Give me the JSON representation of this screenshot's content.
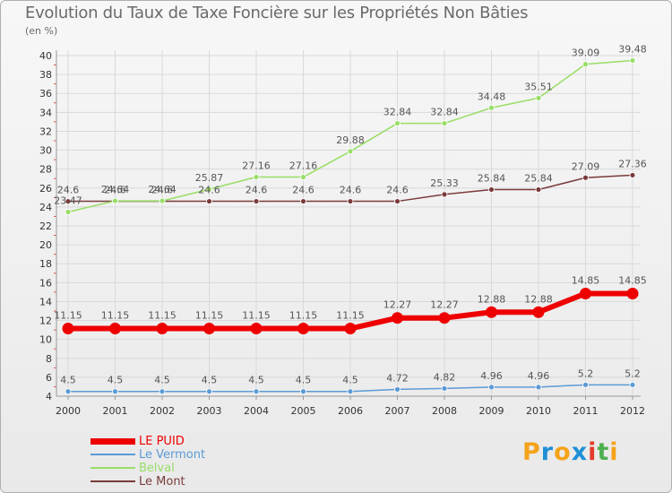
{
  "title": "Evolution du Taux de Taxe Foncière sur les Propriétés Non Bâties",
  "unit_label": "(en %)",
  "brand": {
    "text": "Proxiti",
    "colors": [
      "#f5a31a",
      "#1f8fd6",
      "#f5a31a",
      "#1f8fd6",
      "#e23c2b",
      "#4caf50",
      "#f5a31a"
    ]
  },
  "chart_data": {
    "type": "line",
    "title": "Evolution du Taux de Taxe Foncière sur les Propriétés Non Bâties",
    "xlabel": "",
    "ylabel": "(en %)",
    "ylim": [
      4,
      40
    ],
    "yticks": [
      4,
      6,
      8,
      10,
      12,
      14,
      16,
      18,
      20,
      22,
      24,
      26,
      28,
      30,
      32,
      34,
      36,
      38,
      40
    ],
    "x": [
      "2000",
      "2001",
      "2002",
      "2003",
      "2004",
      "2005",
      "2006",
      "2007",
      "2008",
      "2009",
      "2010",
      "2011",
      "2012"
    ],
    "grid": true,
    "legend_position": "bottom-left",
    "series": [
      {
        "name": "LE PUID",
        "color": "#ee0000",
        "values": [
          11.15,
          11.15,
          11.15,
          11.15,
          11.15,
          11.15,
          11.15,
          12.27,
          12.27,
          12.88,
          12.88,
          14.85,
          14.85
        ],
        "labels": [
          "11.15",
          "11.15",
          "11.15",
          "11.15",
          "11.15",
          "11.15",
          "11.15",
          "12.27",
          "12.27",
          "12.88",
          "12.88",
          "14.85",
          "14.85"
        ]
      },
      {
        "name": "Le Vermont",
        "color": "#5b9ad5",
        "values": [
          4.5,
          4.5,
          4.5,
          4.5,
          4.5,
          4.5,
          4.5,
          4.72,
          4.82,
          4.96,
          4.96,
          5.2,
          5.2
        ],
        "labels": [
          "4.5",
          "4.5",
          "4.5",
          "4.5",
          "4.5",
          "4.5",
          "4.5",
          "4.72",
          "4.82",
          "4.96",
          "4.96",
          "5.2",
          "5.2"
        ]
      },
      {
        "name": "Belval",
        "color": "#99dd66",
        "values": [
          23.47,
          24.64,
          24.64,
          25.87,
          27.16,
          27.16,
          29.88,
          32.84,
          32.84,
          34.48,
          35.51,
          39.09,
          39.48
        ],
        "labels": [
          "23.47",
          "24.64",
          "24.64",
          "25.87",
          "27.16",
          "27.16",
          "29.88",
          "32.84",
          "32.84",
          "34.48",
          "35.51",
          "39.09",
          "39.48"
        ]
      },
      {
        "name": "Le Mont",
        "color": "#7a3b3b",
        "values": [
          24.6,
          24.6,
          24.6,
          24.6,
          24.6,
          24.6,
          24.6,
          24.6,
          25.33,
          25.84,
          25.84,
          27.09,
          27.36
        ],
        "labels": [
          "24.6",
          "24.6",
          "24.6",
          "24.6",
          "24.6",
          "24.6",
          "24.6",
          "24.6",
          "25.33",
          "25.84",
          "25.84",
          "27.09",
          "27.36"
        ]
      }
    ]
  }
}
